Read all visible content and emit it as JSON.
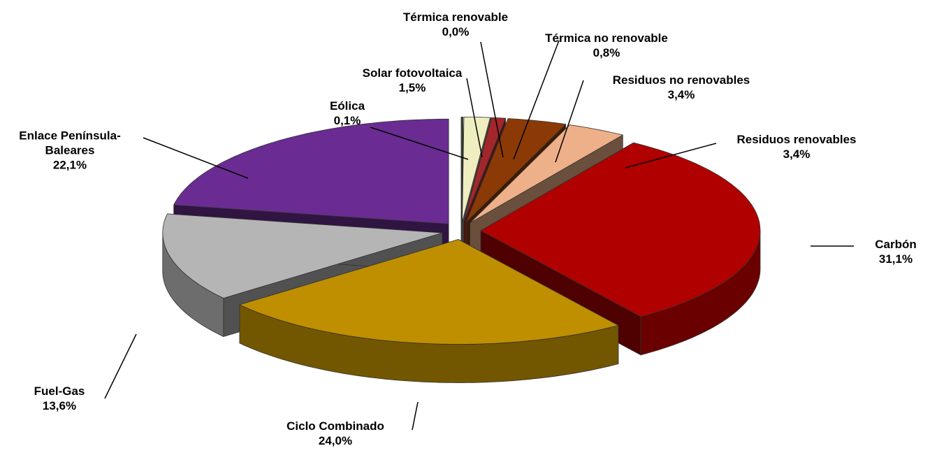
{
  "chart_data": {
    "type": "pie",
    "categories": [
      "Eólica",
      "Solar fotovoltaica",
      "Térmica renovable",
      "Térmica no renovable",
      "Residuos no renovables",
      "Residuos renovables",
      "Carbón",
      "Ciclo Combinado",
      "Fuel-Gas",
      "Enlace Península-Baleares"
    ],
    "values": [
      0.1,
      1.5,
      0.0,
      0.8,
      3.4,
      3.4,
      31.1,
      24.0,
      13.6,
      22.1
    ],
    "value_labels": [
      "0,1%",
      "1,5%",
      "0,0%",
      "0,8%",
      "3,4%",
      "3,4%",
      "31,1%",
      "24,0%",
      "13,6%",
      "22,1%"
    ],
    "colors": [
      "#2f4a2f",
      "#eeeec0",
      "#6b7a30",
      "#a3262a",
      "#8b3a05",
      "#eeb088",
      "#b00000",
      "#bf8f00",
      "#b5b5b5",
      "#6a2c92"
    ]
  }
}
